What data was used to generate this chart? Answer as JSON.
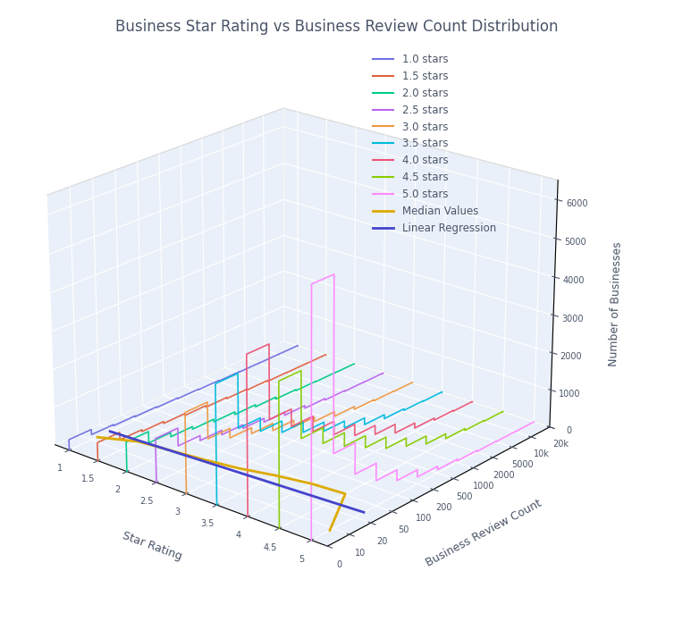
{
  "title": "Business Star Rating vs Business Review Count Distribution",
  "title_color": "#4a6080",
  "xlabel": "Business Review Count",
  "ylabel": "Star Rating",
  "zlabel": "Number of Businesses",
  "star_ratings": [
    1.0,
    1.5,
    2.0,
    2.5,
    3.0,
    3.5,
    4.0,
    4.5,
    5.0
  ],
  "star_colors": {
    "1.0": "#7070e0",
    "1.5": "#e06040",
    "2.0": "#00cc88",
    "2.5": "#bb66ee",
    "3.0": "#ee9944",
    "3.5": "#00bbdd",
    "4.0": "#ee5577",
    "4.5": "#88cc00",
    "5.0": "#ff88ff"
  },
  "median_color": "#ddaa00",
  "regression_color": "#4444cc",
  "background_color": "#dce6f5",
  "grid_color": "#ffffff",
  "bin_edges": [
    0,
    10,
    20,
    50,
    100,
    200,
    500,
    1000,
    2000,
    5000,
    10000,
    20000
  ],
  "bin_labels": [
    "0",
    "10",
    "20",
    "50",
    "100",
    "200",
    "500",
    "1000",
    "2000",
    "5000",
    "10k",
    "20k"
  ],
  "hist_data": {
    "1.0": [
      280,
      140,
      110,
      90,
      70,
      50,
      35,
      18,
      8,
      4,
      2
    ],
    "1.5": [
      480,
      280,
      230,
      180,
      130,
      90,
      60,
      35,
      12,
      6,
      2
    ],
    "2.0": [
      780,
      480,
      370,
      300,
      230,
      160,
      105,
      52,
      22,
      9,
      3
    ],
    "2.5": [
      1150,
      680,
      550,
      430,
      330,
      230,
      145,
      72,
      30,
      10,
      4
    ],
    "3.0": [
      2100,
      1150,
      900,
      740,
      550,
      370,
      250,
      125,
      48,
      18,
      7
    ],
    "3.5": [
      3100,
      1700,
      1350,
      1050,
      780,
      540,
      355,
      175,
      68,
      25,
      9
    ],
    "4.0": [
      4100,
      2200,
      1750,
      1350,
      1000,
      700,
      460,
      225,
      88,
      32,
      11
    ],
    "4.5": [
      3700,
      2000,
      1600,
      1250,
      940,
      645,
      425,
      210,
      82,
      30,
      10
    ],
    "5.0": [
      6300,
      1900,
      1100,
      650,
      370,
      180,
      90,
      45,
      18,
      7,
      2
    ]
  },
  "median_review_counts": [
    12,
    18,
    20,
    23,
    28,
    38,
    48,
    52,
    7
  ],
  "zlim": [
    0,
    6500
  ],
  "z_ticks": [
    0,
    1000,
    2000,
    3000,
    4000,
    5000,
    6000
  ],
  "figsize": [
    7.54,
    7.05
  ],
  "dpi": 100,
  "elev": 22,
  "azim": -50
}
